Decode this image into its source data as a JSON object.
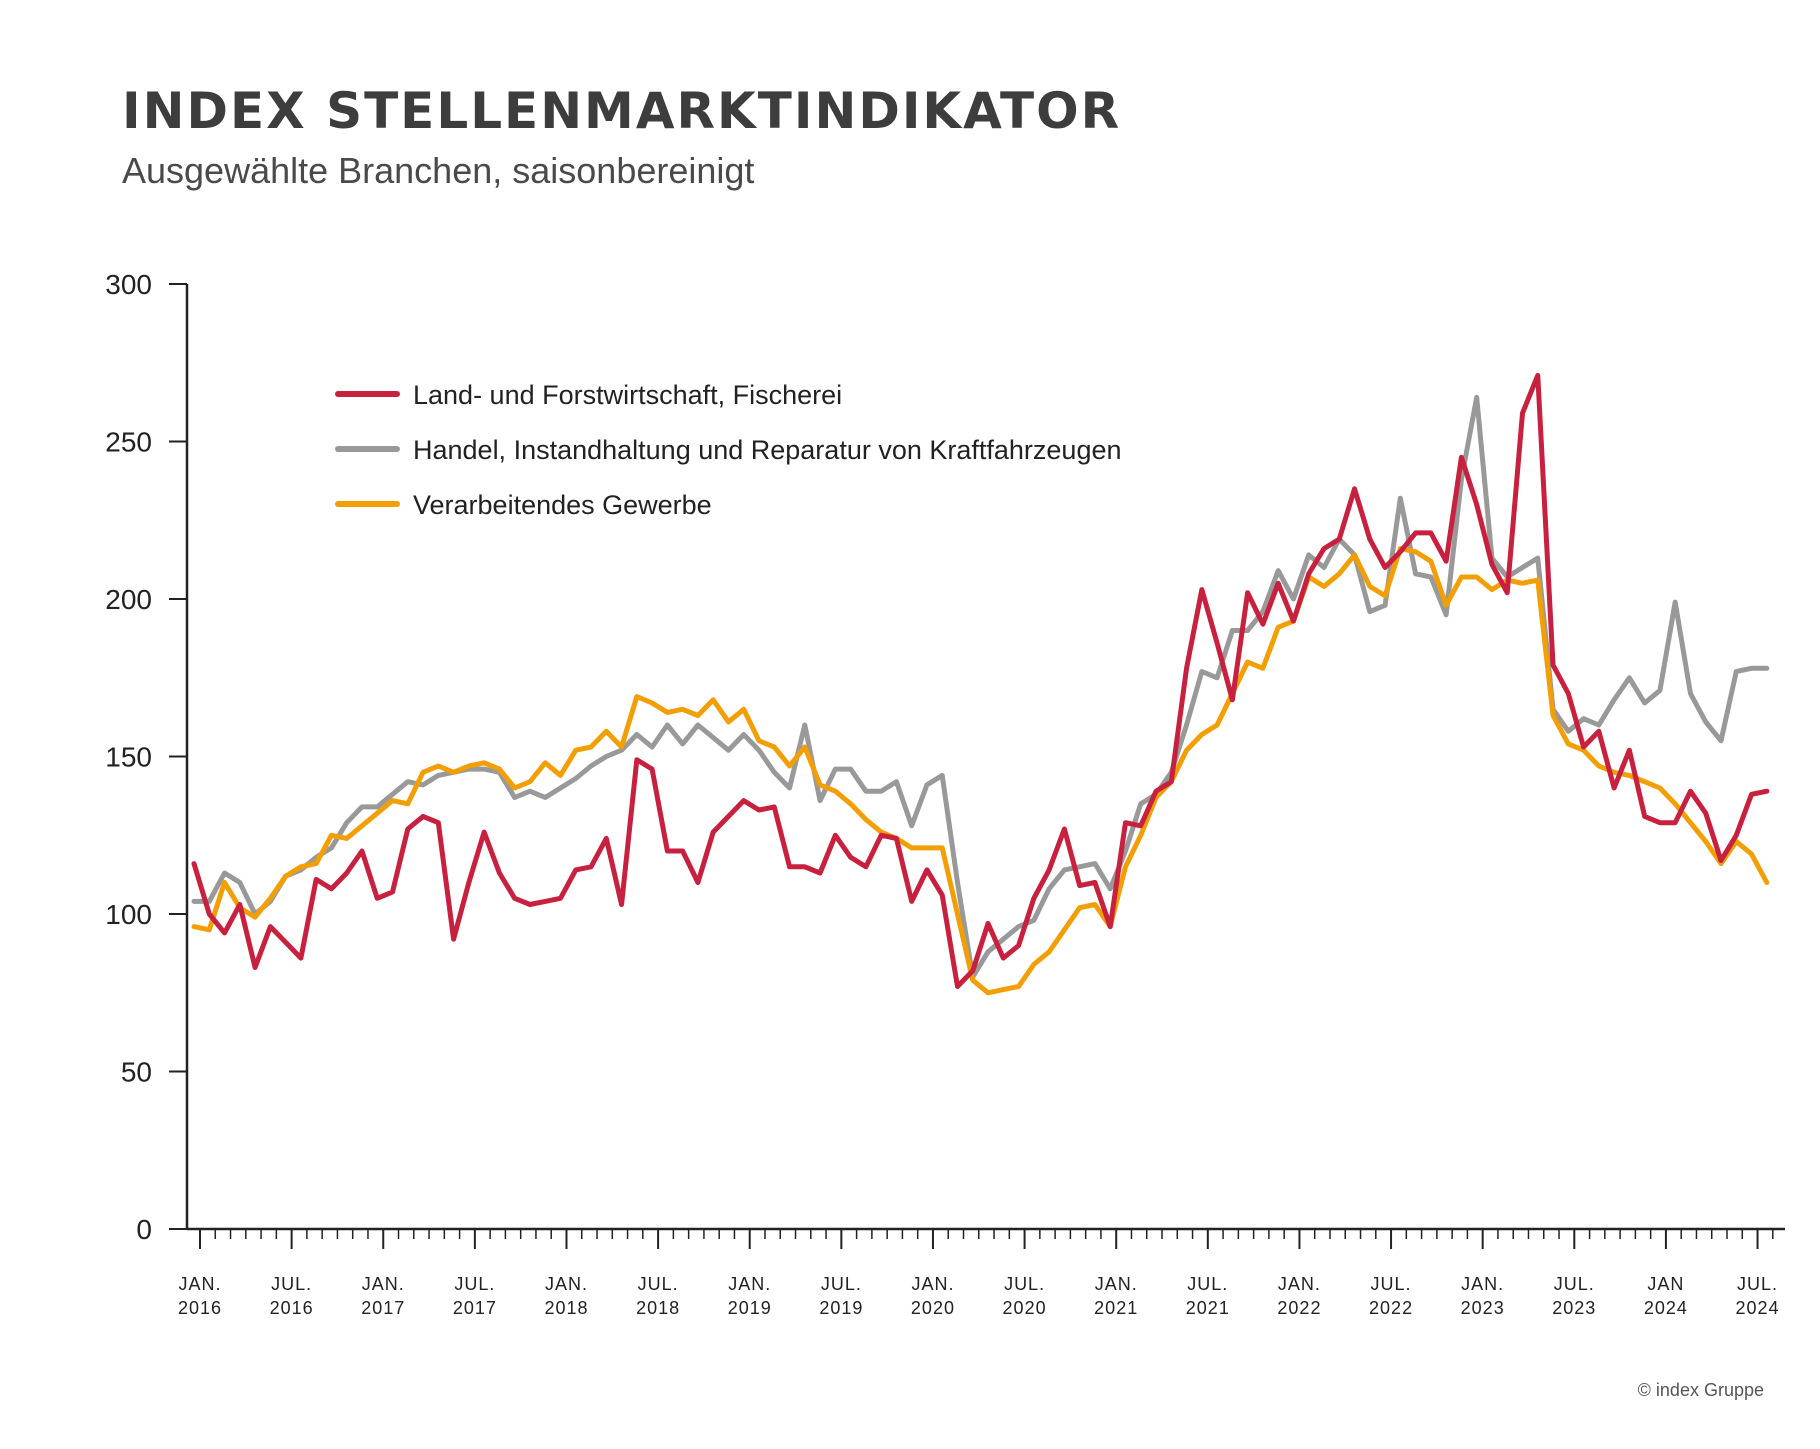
{
  "chart_data": {
    "type": "line",
    "title": "INDEX STELLENMARKTINDIKATOR",
    "subtitle": "Ausgewählte Branchen, saisonbereinigt",
    "ylim": [
      0,
      300
    ],
    "yticks": [
      0,
      50,
      100,
      150,
      200,
      250,
      300
    ],
    "x_start": "2016-01",
    "x_frequency": "monthly",
    "xtick_labels": [
      [
        "JAN.",
        "2016"
      ],
      [
        "JUL.",
        "2016"
      ],
      [
        "JAN.",
        "2017"
      ],
      [
        "JUL.",
        "2017"
      ],
      [
        "JAN.",
        "2018"
      ],
      [
        "JUL.",
        "2018"
      ],
      [
        "JAN.",
        "2019"
      ],
      [
        "JUL.",
        "2019"
      ],
      [
        "JAN.",
        "2020"
      ],
      [
        "JUL.",
        "2020"
      ],
      [
        "JAN.",
        "2021"
      ],
      [
        "JUL.",
        "2021"
      ],
      [
        "JAN.",
        "2022"
      ],
      [
        "JUL.",
        "2022"
      ],
      [
        "JAN.",
        "2023"
      ],
      [
        "JUL.",
        "2023"
      ],
      [
        "JAN",
        "2024"
      ],
      [
        "JUL.",
        "2024"
      ]
    ],
    "grid": false,
    "legend": "top-left",
    "series": [
      {
        "name": "Land- und Forstwirtschaft, Fischerei",
        "color": "#c8203f",
        "values": [
          116,
          100,
          94,
          103,
          83,
          96,
          91,
          86,
          111,
          108,
          113,
          120,
          105,
          107,
          127,
          131,
          129,
          92,
          110,
          126,
          113,
          105,
          103,
          104,
          105,
          114,
          115,
          124,
          103,
          149,
          146,
          120,
          120,
          110,
          126,
          131,
          136,
          133,
          134,
          115,
          115,
          113,
          125,
          118,
          115,
          125,
          124,
          104,
          114,
          106,
          77,
          82,
          97,
          86,
          90,
          105,
          114,
          127,
          109,
          110,
          96,
          129,
          128,
          139,
          142,
          178,
          203,
          186,
          168,
          202,
          192,
          205,
          193,
          208,
          216,
          219,
          235,
          219,
          210,
          215,
          221,
          221,
          212,
          245,
          230,
          211,
          202,
          259,
          271,
          179,
          170,
          153,
          158,
          140,
          152,
          131,
          129,
          129,
          139,
          132,
          117,
          125,
          138,
          139
        ]
      },
      {
        "name": "Handel, Instandhaltung und Reparatur von Kraftfahrzeugen",
        "color": "#999999",
        "values": [
          104,
          104,
          113,
          110,
          100,
          104,
          112,
          114,
          118,
          121,
          129,
          134,
          134,
          138,
          142,
          141,
          144,
          145,
          146,
          146,
          145,
          137,
          139,
          137,
          140,
          143,
          147,
          150,
          152,
          157,
          153,
          160,
          154,
          160,
          156,
          152,
          157,
          152,
          145,
          140,
          160,
          136,
          146,
          146,
          139,
          139,
          142,
          128,
          141,
          144,
          110,
          80,
          88,
          92,
          96,
          98,
          108,
          114,
          115,
          116,
          108,
          120,
          135,
          138,
          145,
          160,
          177,
          175,
          190,
          190,
          196,
          209,
          200,
          214,
          210,
          219,
          214,
          196,
          198,
          232,
          208,
          207,
          195,
          238,
          264,
          213,
          207,
          210,
          213,
          165,
          158,
          162,
          160,
          168,
          175,
          167,
          171,
          199,
          170,
          161,
          155,
          177,
          178,
          178
        ]
      },
      {
        "name": "Verarbeitendes Gewerbe",
        "color": "#f29f05",
        "values": [
          96,
          95,
          110,
          102,
          99,
          105,
          112,
          115,
          116,
          125,
          124,
          128,
          132,
          136,
          135,
          145,
          147,
          145,
          147,
          148,
          146,
          140,
          142,
          148,
          144,
          152,
          153,
          158,
          153,
          169,
          167,
          164,
          165,
          163,
          168,
          161,
          165,
          155,
          153,
          147,
          153,
          141,
          139,
          135,
          130,
          126,
          124,
          121,
          121,
          121,
          100,
          79,
          75,
          76,
          77,
          84,
          88,
          95,
          102,
          103,
          96,
          115,
          125,
          137,
          142,
          152,
          157,
          160,
          170,
          180,
          178,
          191,
          193,
          207,
          204,
          208,
          214,
          204,
          201,
          216,
          215,
          212,
          198,
          207,
          207,
          203,
          206,
          205,
          206,
          163,
          154,
          152,
          147,
          145,
          144,
          142,
          140,
          135,
          129,
          123,
          116,
          123,
          119,
          110
        ]
      }
    ]
  },
  "footer": {
    "copyright": "© index Gruppe"
  }
}
